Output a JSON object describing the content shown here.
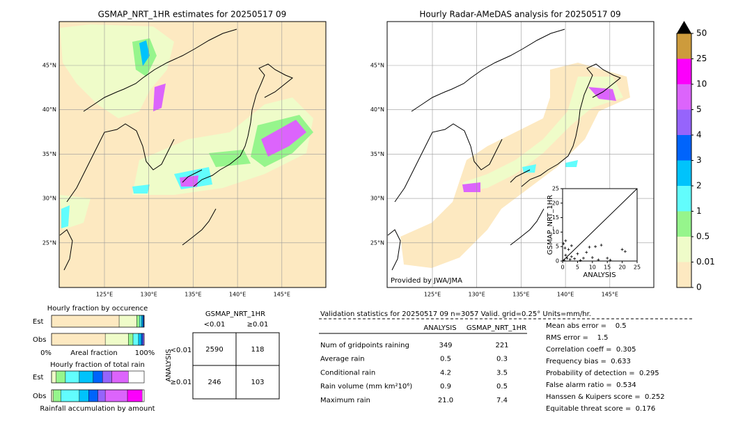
{
  "left_map": {
    "title": "GSMAP_NRT_1HR estimates for 20250517 09",
    "xticks": [
      "125°E",
      "130°E",
      "135°E",
      "140°E",
      "145°E"
    ],
    "yticks": [
      "45°N",
      "40°N",
      "35°N",
      "30°N",
      "25°N"
    ]
  },
  "right_map": {
    "title": "Hourly Radar-AMeDAS analysis for 20250517 09",
    "xticks": [
      "125°E",
      "130°E",
      "135°E",
      "140°E",
      "145°E"
    ],
    "yticks": [
      "45°N",
      "40°N",
      "35°N",
      "30°N",
      "25°N"
    ],
    "credit": "Provided by JWA/JMA"
  },
  "colorbar": {
    "ticks": [
      0,
      0.01,
      0.5,
      1,
      2,
      3,
      4,
      5,
      10,
      25,
      50
    ],
    "colors": [
      "#fde9c1",
      "#effcc9",
      "#96f58c",
      "#62fdfd",
      "#00c3fc",
      "#0064fc",
      "#9664fc",
      "#dc64fc",
      "#fc00fc",
      "#cd9b3c"
    ],
    "over_color": "#000000"
  },
  "scatter": {
    "xlabel": "ANALYSIS",
    "ylabel": "GSMAP_NRT_1HR",
    "ticks": [
      0,
      5,
      10,
      15,
      20,
      25
    ],
    "lim": [
      0,
      25
    ],
    "points": [
      [
        0.5,
        0.3
      ],
      [
        1,
        2
      ],
      [
        1.5,
        1
      ],
      [
        2,
        4
      ],
      [
        2.5,
        0.5
      ],
      [
        3,
        1.5
      ],
      [
        4,
        0.8
      ],
      [
        5,
        2.5
      ],
      [
        6,
        0.2
      ],
      [
        7,
        1
      ],
      [
        8,
        3
      ],
      [
        9,
        4.8
      ],
      [
        10,
        1.2
      ],
      [
        11,
        5
      ],
      [
        12,
        0.4
      ],
      [
        13,
        5.5
      ],
      [
        15,
        1
      ],
      [
        16,
        0.3
      ],
      [
        20,
        4
      ],
      [
        21,
        3.3
      ],
      [
        0.3,
        6
      ],
      [
        1,
        7
      ],
      [
        3,
        5.3
      ],
      [
        0.8,
        4.5
      ]
    ]
  },
  "occurrence": {
    "title": "Hourly fraction by occurence",
    "rows": [
      "Est",
      "Obs"
    ],
    "start": "0%",
    "axis_label": "Areal fraction",
    "end": "100%",
    "segments": [
      [
        0.73,
        0.19,
        0.03,
        0.02,
        0.015,
        0.01,
        0.005
      ],
      [
        0.58,
        0.25,
        0.05,
        0.06,
        0.03,
        0.015,
        0.015
      ]
    ]
  },
  "total": {
    "title": "Hourly fraction of total rain",
    "rows": [
      "Est",
      "Obs"
    ],
    "footer": "Rainfall accumulation by amount",
    "segments": [
      [
        0,
        0.05,
        0.1,
        0.15,
        0.15,
        0.1,
        0.1,
        0.18
      ],
      [
        0,
        0.02,
        0.08,
        0.2,
        0.1,
        0.1,
        0.08,
        0.24,
        0.16
      ]
    ]
  },
  "contingency": {
    "title": "GSMAP_NRT_1HR",
    "cols": [
      "<0.01",
      "≥0.01"
    ],
    "ylabel": "ANALYSIS",
    "rows": [
      "<0.01",
      "≥0.01"
    ],
    "cells": [
      [
        2590,
        118
      ],
      [
        246,
        103
      ]
    ]
  },
  "validation": {
    "header": "Validation statistics for 20250517 09  n=3057 Valid. grid=0.25° Units=mm/hr.",
    "columns": [
      "ANALYSIS",
      "GSMAP_NRT_1HR"
    ],
    "rows": [
      {
        "label": "Num of gridpoints raining",
        "values": [
          "349",
          "221"
        ]
      },
      {
        "label": "Average rain",
        "values": [
          "0.5",
          "0.3"
        ]
      },
      {
        "label": "Conditional rain",
        "values": [
          "4.2",
          "3.5"
        ]
      },
      {
        "label": "Rain volume (mm km²10⁶)",
        "values": [
          "0.9",
          "0.5"
        ]
      },
      {
        "label": "Maximum rain",
        "values": [
          "21.0",
          "7.4"
        ]
      }
    ],
    "scores": [
      "Mean abs error =    0.5",
      "RMS error =    1.5",
      "Correlation coeff =  0.305",
      "Frequency bias =  0.633",
      "Probability of detection =  0.295",
      "False alarm ratio =  0.534",
      "Hanssen & Kuipers score =  0.252",
      "Equitable threat score =  0.176"
    ]
  }
}
